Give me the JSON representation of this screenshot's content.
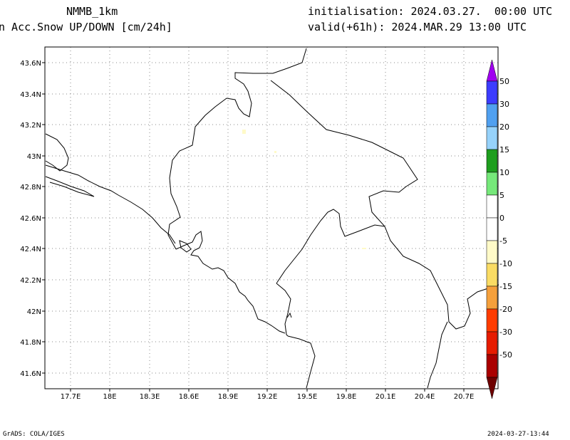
{
  "header": {
    "model": "NMMB_1km",
    "field": "n Acc.Snow UP/DOWN [cm/24h]",
    "init": "initialisation: 2024.03.27.  00:00 UTC",
    "valid": "valid(+61h): 2024.MAR.29 13:00 UTC"
  },
  "map": {
    "lat_labels": [
      "43.6N",
      "43.4N",
      "43.2N",
      "43N",
      "42.8N",
      "42.6N",
      "42.4N",
      "42.2N",
      "42N",
      "41.8N",
      "41.6N"
    ],
    "lon_labels": [
      "17.7E",
      "18E",
      "18.3E",
      "18.6E",
      "18.9E",
      "19.2E",
      "19.5E",
      "19.8E",
      "20.1E",
      "20.4E",
      "20.7E"
    ],
    "lat_range": [
      41.5,
      43.7
    ],
    "lon_range": [
      17.5,
      20.95
    ],
    "gridlines": "dotted"
  },
  "legend": {
    "levels": [
      "50",
      "30",
      "20",
      "15",
      "10",
      "5",
      "0",
      "-5",
      "-10",
      "-15",
      "-20",
      "-30",
      "-50"
    ],
    "colors": {
      "top_arrow": "#a000f0",
      "bottom_arrow": "#6e0000",
      "bins": [
        "#3c3cff",
        "#50a0f0",
        "#96d2fa",
        "#1e9e1e",
        "#76e87a",
        "#ffffff",
        "#ffffff",
        "#fffac8",
        "#fadc64",
        "#f5a03c",
        "#ff3c00",
        "#e61c00",
        "#aa0000"
      ]
    }
  },
  "footer": {
    "left": "GrADS: COLA/IGES",
    "right": "2024-03-27-13:44"
  }
}
